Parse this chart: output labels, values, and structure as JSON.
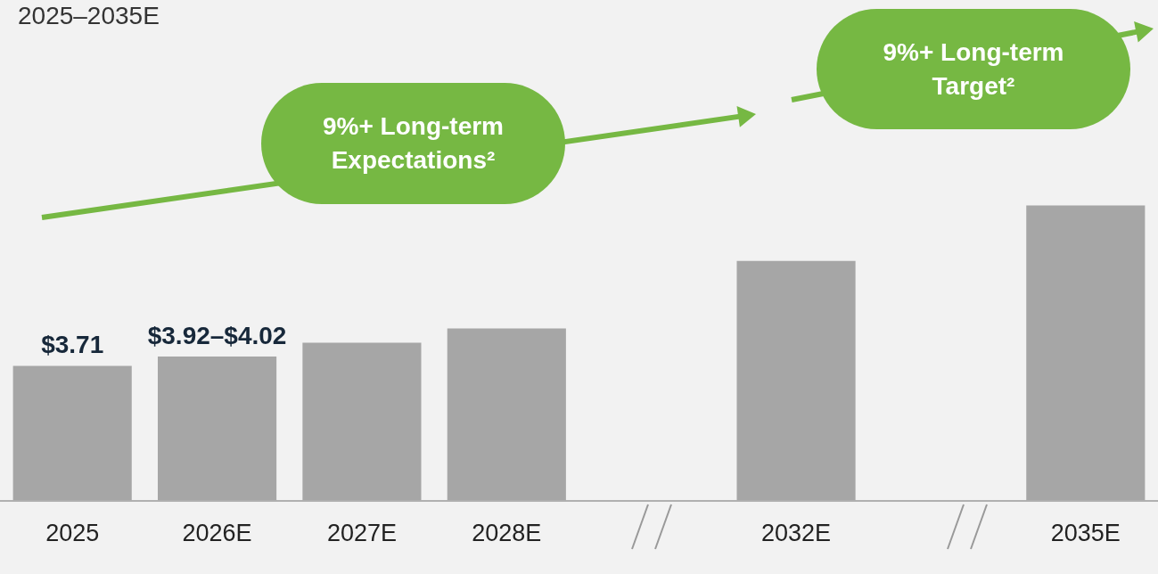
{
  "chart_data": {
    "type": "bar",
    "title": "2025–2035E",
    "categories": [
      "2025",
      "2026E",
      "2027E",
      "2028E",
      null,
      "2032E",
      null,
      "2035E"
    ],
    "values": [
      3.71,
      3.97,
      4.35,
      4.74,
      null,
      6.6,
      null,
      8.13
    ],
    "value_labels": [
      "$3.71",
      "$3.92–$4.02",
      null,
      null,
      null,
      null,
      null,
      null
    ],
    "color": "#a6a6a6",
    "annotations": [
      "9%+ Long-term Expectations²",
      "9%+ Long-term Target²"
    ],
    "grid": false,
    "legend": false
  }
}
